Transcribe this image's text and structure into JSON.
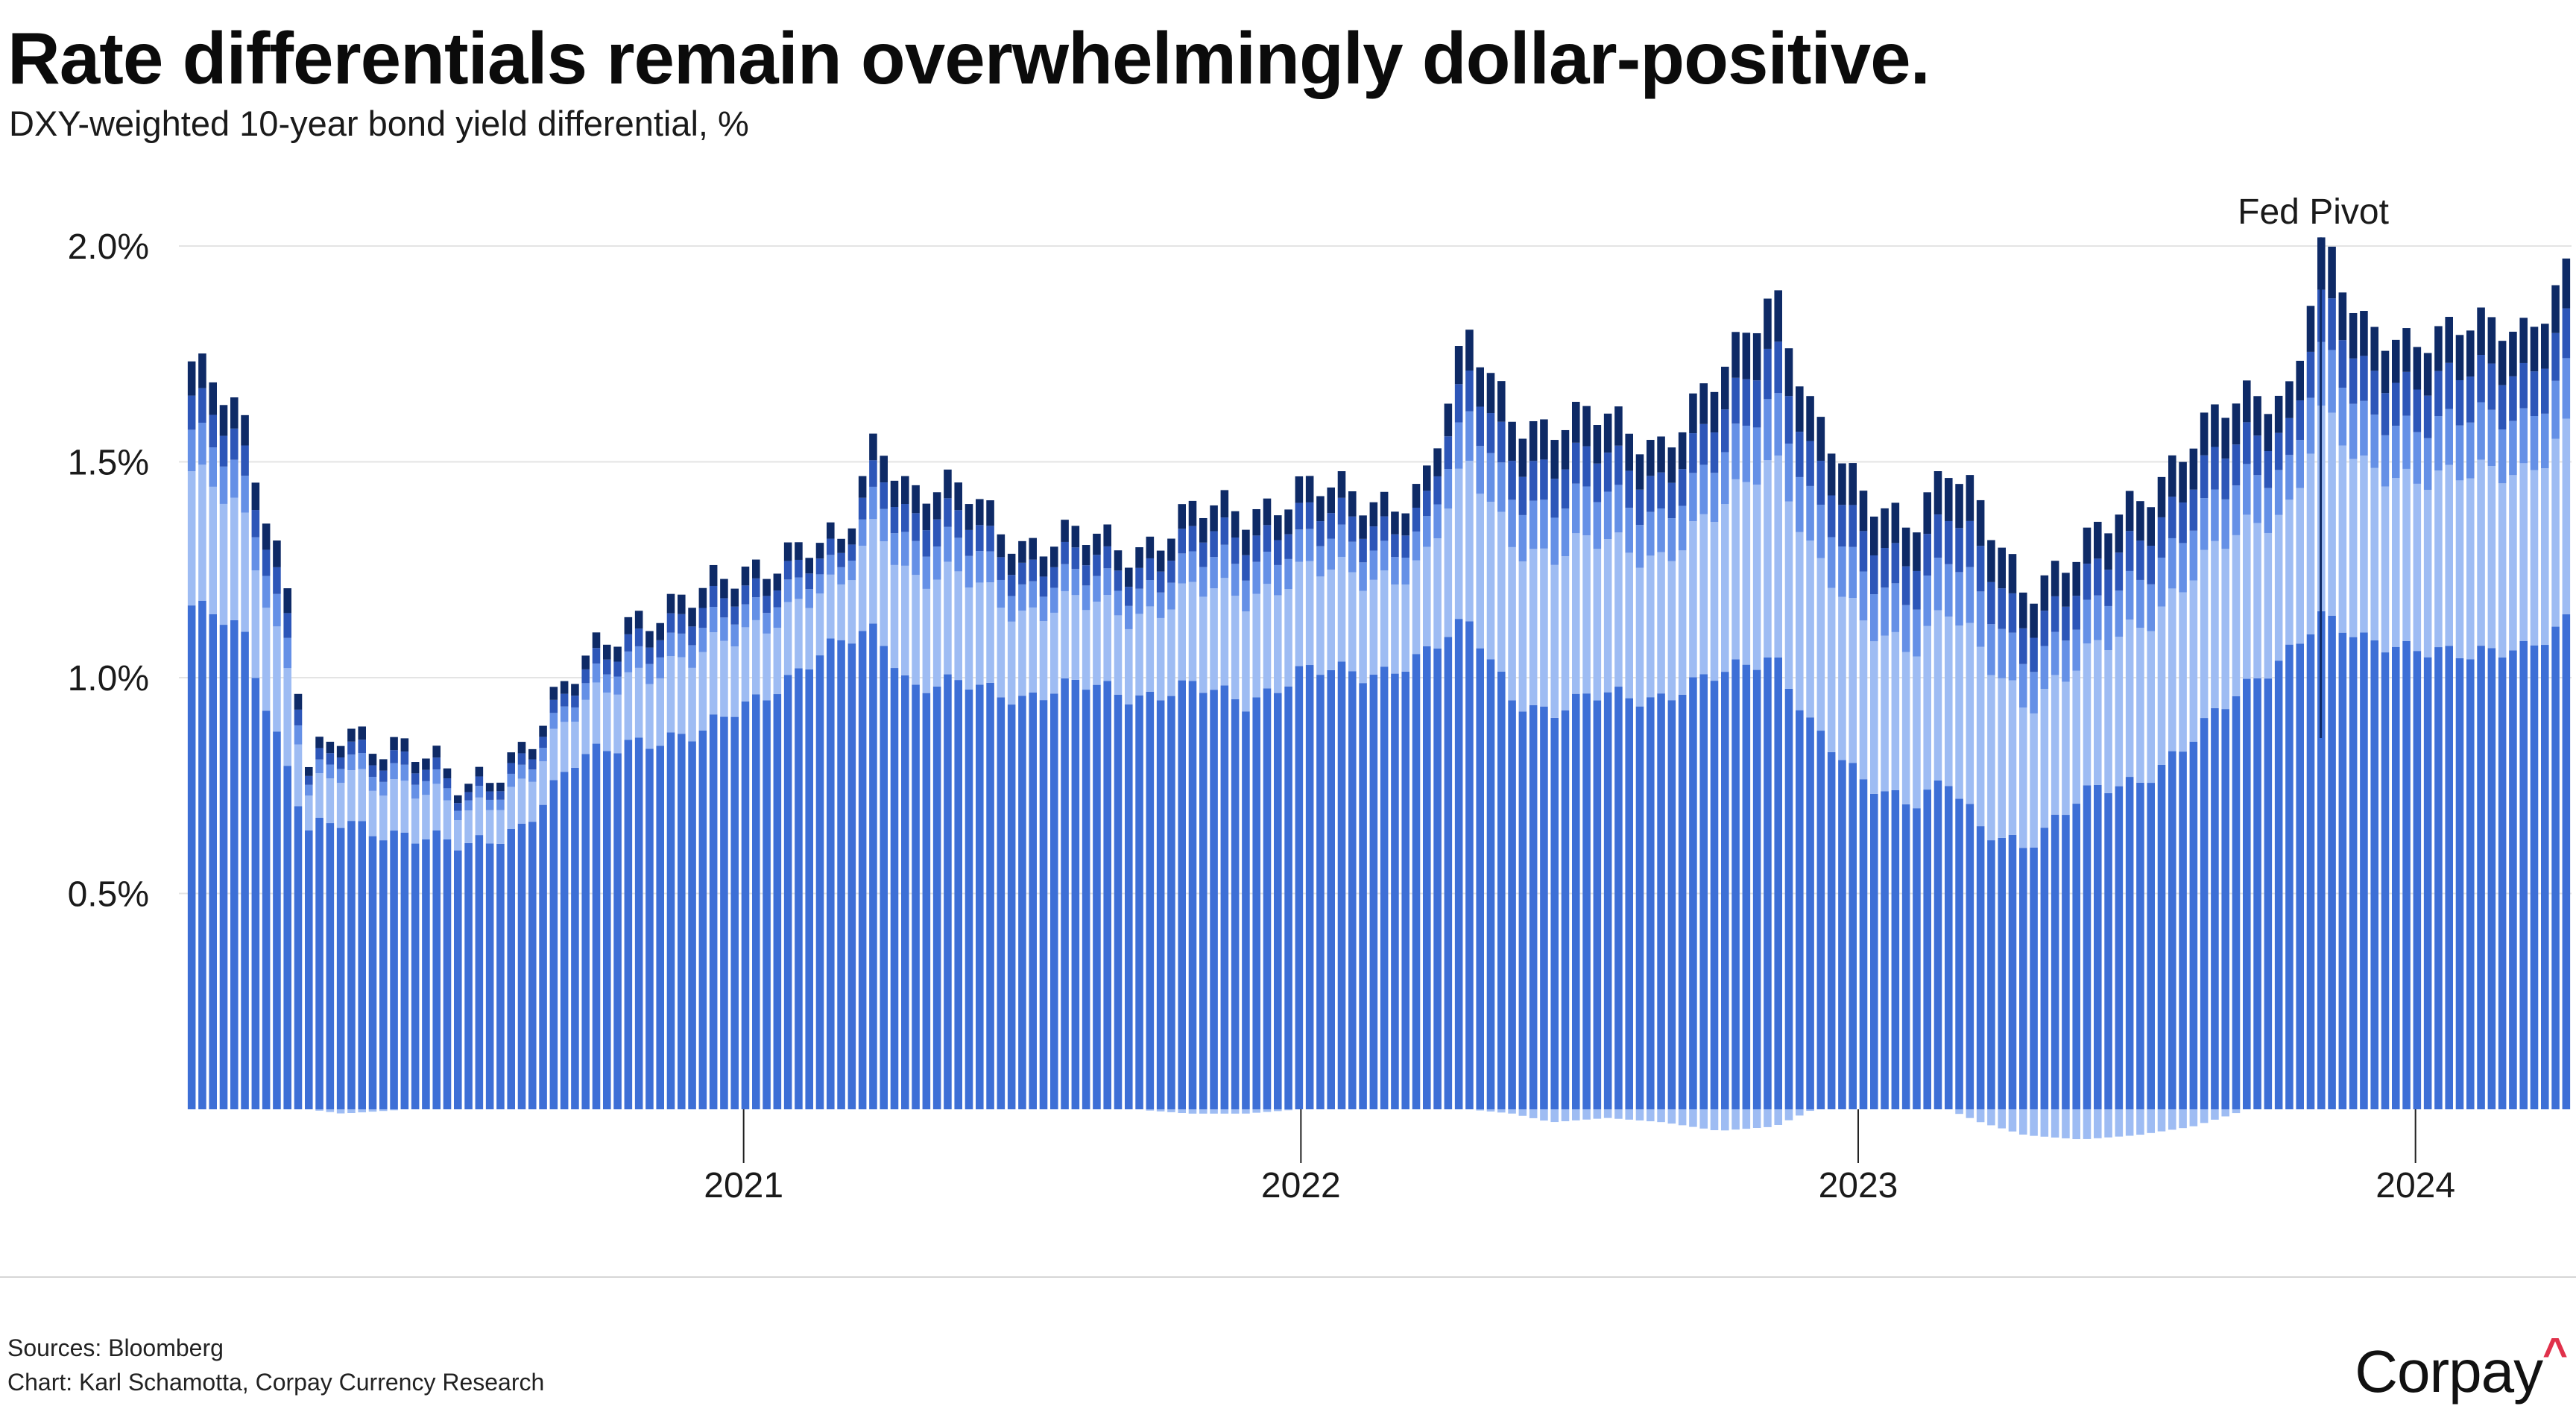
{
  "chart_data": {
    "type": "bar",
    "stacked": true,
    "title": "Rate differentials remain overwhelmingly dollar-positive.",
    "subtitle": "DXY-weighted 10-year bond yield differential, %",
    "y_ticks": [
      "0.5%",
      "1.0%",
      "1.5%",
      "2.0%"
    ],
    "y_tick_values": [
      0.5,
      1.0,
      1.5,
      2.0
    ],
    "ylim": [
      0,
      2.08
    ],
    "x_ticks": [
      "2021",
      "2022",
      "2023",
      "2024"
    ],
    "x_range_years": [
      2020.0,
      2024.28
    ],
    "grid": true,
    "legend": "none",
    "annotation": {
      "label": "Fed Pivot",
      "year": 2023.83
    },
    "series_colors": [
      "#3d6fd6",
      "#9ebcf3",
      "#6590e6",
      "#2d56b8",
      "#0e2a66"
    ],
    "anchor_years": [
      2020.0,
      2020.1,
      2020.18,
      2020.22,
      2020.28,
      2020.4,
      2020.5,
      2020.6,
      2020.7,
      2020.8,
      2020.92,
      2021.0,
      2021.08,
      2021.18,
      2021.24,
      2021.3,
      2021.4,
      2021.5,
      2021.6,
      2021.7,
      2021.8,
      2021.9,
      2022.0,
      2022.12,
      2022.22,
      2022.3,
      2022.38,
      2022.45,
      2022.55,
      2022.65,
      2022.75,
      2022.85,
      2022.92,
      2023.0,
      2023.1,
      2023.16,
      2023.22,
      2023.3,
      2023.4,
      2023.5,
      2023.6,
      2023.7,
      2023.78,
      2023.83,
      2023.9,
      2024.0,
      2024.1,
      2024.2,
      2024.28
    ],
    "anchor_totals": [
      1.72,
      1.62,
      1.22,
      0.78,
      0.86,
      0.86,
      0.72,
      0.85,
      1.0,
      1.15,
      1.18,
      1.25,
      1.3,
      1.3,
      1.58,
      1.44,
      1.42,
      1.32,
      1.32,
      1.3,
      1.38,
      1.38,
      1.45,
      1.4,
      1.45,
      1.78,
      1.62,
      1.58,
      1.6,
      1.55,
      1.68,
      1.92,
      1.6,
      1.42,
      1.38,
      1.48,
      1.38,
      1.22,
      1.28,
      1.42,
      1.55,
      1.65,
      1.68,
      2.02,
      1.8,
      1.8,
      1.8,
      1.82,
      1.96
    ],
    "anchor_base": [
      1.16,
      1.12,
      0.8,
      0.64,
      0.66,
      0.64,
      0.6,
      0.66,
      0.8,
      0.86,
      0.86,
      0.94,
      1.0,
      1.08,
      1.12,
      0.98,
      0.98,
      0.96,
      0.98,
      0.96,
      0.98,
      0.94,
      1.02,
      1.0,
      1.06,
      1.12,
      0.96,
      0.92,
      0.96,
      0.96,
      1.0,
      1.06,
      0.88,
      0.76,
      0.72,
      0.76,
      0.64,
      0.62,
      0.72,
      0.76,
      0.86,
      0.98,
      1.08,
      1.14,
      1.08,
      1.08,
      1.04,
      1.08,
      1.14
    ],
    "anchor_negative": [
      0.0,
      0.0,
      0.0,
      0.0,
      0.01,
      0.0,
      0.0,
      0.0,
      0.0,
      0.0,
      0.0,
      0.0,
      0.0,
      0.0,
      0.0,
      0.0,
      0.0,
      0.0,
      0.0,
      0.0,
      0.01,
      0.01,
      0.0,
      0.0,
      0.0,
      0.0,
      0.01,
      0.03,
      0.02,
      0.03,
      0.05,
      0.04,
      0.0,
      0.0,
      0.0,
      0.0,
      0.03,
      0.06,
      0.07,
      0.06,
      0.04,
      0.0,
      0.0,
      0.0,
      0.0,
      0.0,
      0.0,
      0.0,
      0.0
    ]
  },
  "footer": {
    "source": "Sources: Bloomberg",
    "credit": "Chart: Karl Schamotta, Corpay Currency Research",
    "logo": "Corpay",
    "logo_mark": "^"
  }
}
